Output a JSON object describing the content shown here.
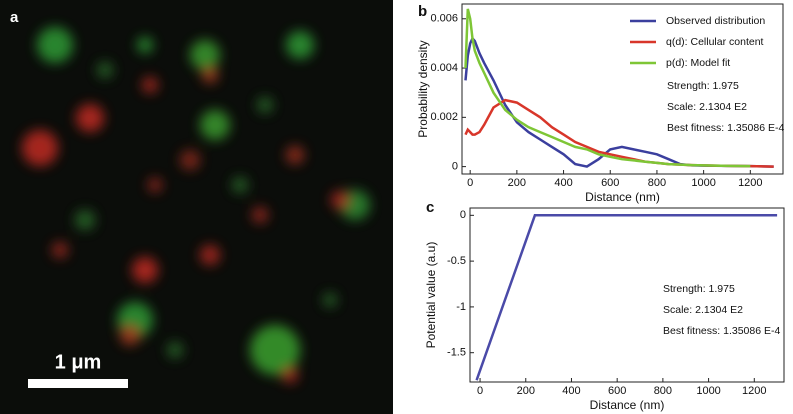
{
  "image_panel": {
    "label": "a",
    "scale_bar": "1 μm"
  },
  "chart_data": [
    {
      "type": "line",
      "panel": "b",
      "xlabel": "Distance (nm)",
      "ylabel": "Probability density",
      "x": [
        -20,
        -10,
        0,
        10,
        20,
        40,
        60,
        100,
        150,
        200,
        250,
        300,
        350,
        400,
        450,
        500,
        550,
        600,
        650,
        700,
        750,
        800,
        850,
        900,
        950,
        1000,
        1100,
        1200,
        1300
      ],
      "series": [
        {
          "name": "Observed distribution",
          "color": "#3b3f9e",
          "values": [
            0.0035,
            0.0045,
            0.005,
            0.0052,
            0.0051,
            0.0046,
            0.0042,
            0.0035,
            0.0025,
            0.0018,
            0.0014,
            0.0011,
            0.0008,
            0.0005,
            0.0001,
            0.0,
            0.0003,
            0.0007,
            0.0008,
            0.0007,
            0.0006,
            0.0005,
            0.0003,
            0.0001,
            5e-05,
            4e-05,
            3e-05,
            2e-05,
            0.0
          ]
        },
        {
          "name": "q(d): Cellular content",
          "color": "#d8362a",
          "values": [
            0.0013,
            0.0015,
            0.0014,
            0.0013,
            0.0013,
            0.0014,
            0.0017,
            0.0024,
            0.0027,
            0.0026,
            0.0023,
            0.002,
            0.0016,
            0.0013,
            0.001,
            0.0008,
            0.0006,
            0.0005,
            0.0004,
            0.0003,
            0.0002,
            0.00015,
            0.0001,
            8e-05,
            6e-05,
            5e-05,
            3e-05,
            2e-05,
            0.0
          ]
        },
        {
          "name": "p(d): Model fit",
          "color": "#7ec636",
          "values": [
            0.004,
            0.0064,
            0.006,
            0.0052,
            0.0047,
            0.0042,
            0.0038,
            0.003,
            0.0023,
            0.0019,
            0.0016,
            0.0014,
            0.0012,
            0.001,
            0.0008,
            0.0007,
            0.0005,
            0.0004,
            0.0003,
            0.00025,
            0.0002,
            0.00015,
            0.0001,
            8e-05,
            6e-05,
            5e-05,
            3e-05,
            2e-05,
            null
          ]
        }
      ],
      "xlim": [
        -35,
        1340
      ],
      "ylim": [
        -0.0003,
        0.0066
      ],
      "xticks": [
        0,
        200,
        400,
        600,
        800,
        1000,
        1200
      ],
      "yticks": [
        0,
        0.002,
        0.004,
        0.006
      ],
      "legend": "upper right",
      "annotations": [
        "Strength: 1.975",
        "Scale: 2.1304 E2",
        "Best fitness: 1.35086 E-4"
      ]
    },
    {
      "type": "line",
      "panel": "c",
      "xlabel": "Distance (nm)",
      "ylabel": "Potential value  (a.u)",
      "x": [
        -15,
        240,
        1300
      ],
      "series": [
        {
          "color": "#4a4aa8",
          "values": [
            -1.8,
            0,
            0
          ]
        }
      ],
      "xlim": [
        -44,
        1330
      ],
      "ylim": [
        -1.82,
        0.08
      ],
      "xticks": [
        0,
        200,
        400,
        600,
        800,
        1000,
        1200
      ],
      "yticks": [
        0,
        -0.5,
        -1,
        -1.5
      ],
      "annotations": [
        "Strength: 1.975",
        "Scale: 2.1304 E2",
        "Best fitness: 1.35086 E-4"
      ]
    }
  ]
}
